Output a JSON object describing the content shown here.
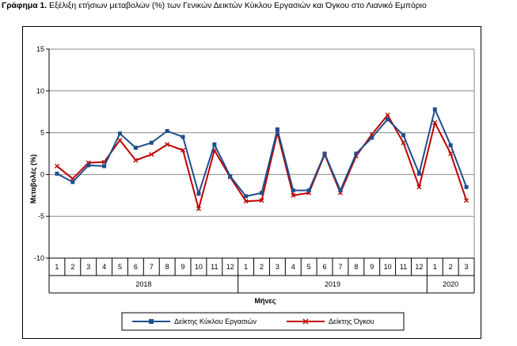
{
  "title": {
    "prefix": "Γράφημα 1.",
    "text": "Εξέλιξη ετήσιων μεταβολών (%) των Γενικών Δεικτών Κύκλου Εργασιών και Όγκου στο Λιανικό Εμπόριο"
  },
  "chart_data": {
    "type": "line",
    "ylabel": "Μεταβολές (%)",
    "xlabel": "Μήνες",
    "ylim": [
      -10,
      15
    ],
    "yticks": [
      -10,
      -5,
      0,
      5,
      10,
      15
    ],
    "grid": "horizontal",
    "legend_position": "bottom",
    "month_labels": [
      "1",
      "2",
      "3",
      "4",
      "5",
      "6",
      "7",
      "8",
      "9",
      "10",
      "11",
      "12",
      "1",
      "2",
      "3",
      "4",
      "5",
      "6",
      "7",
      "8",
      "9",
      "10",
      "11",
      "12",
      "1",
      "2",
      "3"
    ],
    "year_groups": [
      {
        "label": "2018",
        "start": 0,
        "count": 12
      },
      {
        "label": "2019",
        "start": 12,
        "count": 12
      },
      {
        "label": "2020",
        "start": 24,
        "count": 3
      }
    ],
    "series": [
      {
        "name": "Δείκτης Κύκλου Εργασιών",
        "color": "#1f4e8c",
        "marker": "square",
        "values": [
          0.1,
          -0.9,
          1.1,
          1.0,
          4.9,
          3.2,
          3.8,
          5.2,
          4.5,
          -2.3,
          3.6,
          -0.2,
          -2.6,
          -2.2,
          5.4,
          -1.9,
          -1.9,
          2.5,
          -1.9,
          2.5,
          4.4,
          6.6,
          4.7,
          0.1,
          7.8,
          3.5,
          -1.5
        ]
      },
      {
        "name": "Δείκτης Όγκου",
        "color": "#c00000",
        "marker": "cross",
        "values": [
          1.0,
          -0.5,
          1.4,
          1.5,
          4.1,
          1.7,
          2.4,
          3.6,
          2.9,
          -4.1,
          2.9,
          -0.3,
          -3.2,
          -3.1,
          5.0,
          -2.5,
          -2.2,
          2.4,
          -2.2,
          2.2,
          4.8,
          7.1,
          3.8,
          -1.5,
          6.2,
          2.5,
          -3.1
        ]
      }
    ]
  }
}
